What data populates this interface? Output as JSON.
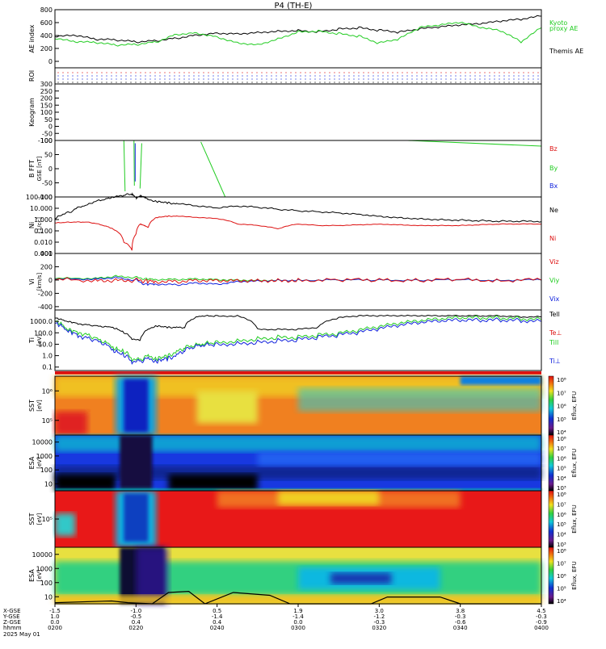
{
  "title": "P4  (TH-E)",
  "date_label": "2025 May 01",
  "colors": {
    "green": "#22cc22",
    "red": "#dd1111",
    "blue": "#1122dd",
    "black": "#000000"
  },
  "chart_data": [
    {
      "type": "line",
      "id": "ae",
      "ylabel": "AE index",
      "ylim": [
        -100,
        800
      ],
      "yticks": [
        "0",
        "200",
        "400",
        "600",
        "800"
      ],
      "legend": [
        {
          "name": "Kyoto",
          "color": "green"
        },
        {
          "name": "proxy AE",
          "color": "green"
        },
        {
          "name": "Themis AE",
          "color": "black"
        }
      ],
      "x": [
        0,
        5,
        10,
        15,
        20,
        25,
        30,
        35,
        40,
        45,
        50,
        55,
        60,
        65,
        70,
        75,
        80,
        85,
        90,
        95,
        100,
        105,
        110,
        115,
        120
      ],
      "series": [
        {
          "name": "Themis AE",
          "color": "black",
          "values": [
            380,
            400,
            340,
            330,
            300,
            320,
            360,
            410,
            440,
            430,
            450,
            470,
            480,
            460,
            500,
            520,
            480,
            450,
            500,
            530,
            560,
            580,
            620,
            650,
            700
          ]
        },
        {
          "name": "Kyoto",
          "color": "green",
          "values": [
            350,
            300,
            290,
            250,
            260,
            300,
            420,
            440,
            380,
            290,
            260,
            350,
            460,
            470,
            430,
            390,
            280,
            350,
            520,
            560,
            600,
            520,
            470,
            300,
            520
          ]
        }
      ]
    },
    {
      "type": "scatter",
      "id": "roi",
      "ylabel": "ROI",
      "yticks": []
    },
    {
      "type": "scatter",
      "id": "keogram",
      "ylabel": "Keogram",
      "ylim": [
        -100,
        300
      ],
      "yticks": [
        "-100",
        "-50",
        "0",
        "50",
        "100",
        "150",
        "200",
        "250",
        "300"
      ]
    },
    {
      "type": "line",
      "id": "bfft",
      "ylabel": "B FFT",
      "yunit": "GSE [nT]",
      "ylim": [
        -100,
        100
      ],
      "yticks": [
        "-100",
        "-50",
        "0",
        "50",
        "100"
      ],
      "legend": [
        {
          "name": "Bz",
          "color": "red"
        },
        {
          "name": "By",
          "color": "green"
        },
        {
          "name": "Bx",
          "color": "blue"
        }
      ],
      "segments": [
        {
          "color": "green",
          "points": [
            [
              17,
              100
            ],
            [
              17.3,
              -80
            ]
          ]
        },
        {
          "color": "green",
          "points": [
            [
              19.5,
              100
            ],
            [
              19.6,
              -60
            ]
          ]
        },
        {
          "color": "green",
          "points": [
            [
              21.4,
              90
            ],
            [
              21,
              -70
            ]
          ]
        },
        {
          "color": "blue",
          "points": [
            [
              19.8,
              90
            ],
            [
              19.8,
              -45
            ]
          ]
        },
        {
          "color": "green",
          "points": [
            [
              36,
              95
            ],
            [
              42,
              -100
            ]
          ]
        },
        {
          "color": "green",
          "points": [
            [
              87,
              100
            ],
            [
              120,
              80
            ]
          ]
        }
      ]
    },
    {
      "type": "line",
      "id": "density",
      "ylabel": "Ni",
      "yunit": "[1/cc]",
      "scale": "log",
      "ylim": [
        0.001,
        100
      ],
      "yticks": [
        "0.001",
        "0.010",
        "0.100",
        "1.000",
        "10.000",
        "100.000"
      ],
      "legend": [
        {
          "name": "Ne",
          "color": "black"
        },
        {
          "name": "Ni",
          "color": "red"
        }
      ],
      "x": [
        0,
        4,
        8,
        12,
        15,
        17,
        19,
        20,
        21,
        22,
        23,
        25,
        28,
        30,
        35,
        40,
        45,
        50,
        55,
        60,
        65,
        70,
        75,
        80,
        85,
        90,
        95,
        100,
        105,
        110,
        115,
        120
      ],
      "series": [
        {
          "name": "Ne",
          "color": "black",
          "values": [
            1,
            5,
            20,
            60,
            100,
            150,
            180,
            80,
            120,
            100,
            60,
            40,
            30,
            25,
            15,
            10,
            15,
            12,
            8,
            6,
            5,
            4,
            3,
            2,
            1.5,
            1.2,
            1,
            0.9,
            0.8,
            0.7,
            0.7,
            0.65
          ]
        },
        {
          "name": "Ni",
          "color": "red",
          "values": [
            0.5,
            0.6,
            0.6,
            0.3,
            0.1,
            0.01,
            0.002,
            0.05,
            0.4,
            0.3,
            0.2,
            1.5,
            2,
            2,
            1.5,
            1.2,
            0.4,
            0.3,
            0.15,
            0.4,
            0.3,
            0.3,
            0.35,
            0.4,
            0.35,
            0.3,
            0.3,
            0.3,
            0.35,
            0.4,
            0.4,
            0.4
          ]
        }
      ]
    },
    {
      "type": "line",
      "id": "velocity",
      "ylabel": "Vi",
      "yunit": "[km/s]",
      "ylim": [
        -450,
        400
      ],
      "yticks": [
        "-400",
        "-200",
        "0",
        "200",
        "400"
      ],
      "legend": [
        {
          "name": "Viz",
          "color": "red"
        },
        {
          "name": "Viy",
          "color": "green"
        },
        {
          "name": "Vix",
          "color": "blue"
        }
      ],
      "x": [
        0,
        10,
        15,
        20,
        22,
        25,
        30,
        35,
        40,
        45,
        50,
        55,
        60,
        70,
        80,
        90,
        100,
        110,
        120
      ],
      "series": [
        {
          "name": "Viy",
          "color": "green",
          "values": [
            20,
            30,
            60,
            40,
            20,
            10,
            10,
            20,
            10,
            5,
            0,
            0,
            0,
            0,
            0,
            0,
            0,
            0,
            0
          ]
        },
        {
          "name": "Vix",
          "color": "blue",
          "values": [
            10,
            20,
            40,
            0,
            -60,
            -60,
            -70,
            -40,
            -60,
            -20,
            -10,
            0,
            0,
            0,
            0,
            0,
            0,
            0,
            0
          ]
        },
        {
          "name": "Viz",
          "color": "red",
          "values": [
            0,
            0,
            0,
            0,
            -10,
            -20,
            -20,
            0,
            0,
            0,
            0,
            0,
            0,
            0,
            0,
            0,
            0,
            0,
            0
          ]
        }
      ]
    },
    {
      "type": "line",
      "id": "temperature",
      "ylabel": "Ti",
      "yunit": "[eV]",
      "scale": "log",
      "ylim": [
        0.05,
        10000
      ],
      "yticks": [
        "0.1",
        "1.0",
        "10.0",
        "100.0",
        "1000.0"
      ],
      "legend": [
        {
          "name": "Tell",
          "color": "black"
        },
        {
          "name": "Te⊥",
          "color": "red"
        },
        {
          "name": "Till",
          "color": "green"
        },
        {
          "name": "Ti⊥",
          "color": "blue"
        }
      ],
      "x": [
        0,
        3,
        6,
        10,
        14,
        17,
        19,
        21,
        23,
        25,
        28,
        30,
        32,
        36,
        40,
        45,
        50,
        55,
        60,
        65,
        70,
        75,
        80,
        85,
        90,
        95,
        100,
        105,
        110,
        115,
        120
      ],
      "series": [
        {
          "name": "Tell",
          "color": "black",
          "values": [
            2000,
            1000,
            600,
            400,
            300,
            100,
            30,
            20,
            200,
            400,
            300,
            300,
            300,
            3000,
            3000,
            3000,
            200,
            200,
            200,
            300,
            2000,
            3000,
            3000,
            3000,
            3000,
            3000,
            3000,
            3000,
            3000,
            2500,
            2500
          ]
        },
        {
          "name": "Till",
          "color": "green",
          "values": [
            1000,
            200,
            100,
            30,
            5,
            2,
            0.5,
            0.4,
            1,
            0.5,
            1,
            2,
            5,
            10,
            15,
            20,
            30,
            40,
            40,
            60,
            80,
            150,
            300,
            600,
            1000,
            1500,
            2000,
            2000,
            2000,
            1800,
            1500
          ]
        },
        {
          "name": "Ti⊥",
          "color": "blue",
          "values": [
            700,
            150,
            50,
            20,
            3,
            1,
            0.3,
            0.3,
            0.6,
            0.3,
            0.6,
            1,
            3,
            8,
            10,
            12,
            15,
            20,
            25,
            40,
            60,
            100,
            200,
            400,
            700,
            1000,
            1200,
            1200,
            1300,
            1200,
            1000
          ]
        }
      ]
    },
    {
      "type": "heatmap",
      "id": "sst1",
      "ylabel": "SST",
      "yunit": "[eV]",
      "yticks": [
        "10⁵",
        "10⁶"
      ],
      "colorbar_label": "Eflux, EFU",
      "colorbar_ticks": [
        "10⁴",
        "10⁵",
        "10⁶",
        "10⁷",
        "10⁸"
      ]
    },
    {
      "type": "heatmap",
      "id": "esa1",
      "ylabel": "ESA",
      "yunit": "[eV]",
      "yticks": [
        "10",
        "100",
        "1000",
        "10000"
      ],
      "colorbar_label": "Eflux, EFU",
      "colorbar_ticks": [
        "10³",
        "10⁴",
        "10⁵",
        "10⁶",
        "10⁷",
        "10⁸"
      ]
    },
    {
      "type": "heatmap",
      "id": "sst2",
      "ylabel": "SST",
      "yunit": "[eV]",
      "yticks": [
        "10⁵"
      ],
      "colorbar_label": "Eflux, EFU",
      "colorbar_ticks": [
        "10³",
        "10⁴",
        "10⁵",
        "10⁶",
        "10⁷",
        "10⁸"
      ]
    },
    {
      "type": "heatmap",
      "id": "esa2",
      "ylabel": "ESA",
      "yunit": "[eV]",
      "yticks": [
        "10",
        "100",
        "1000",
        "10000"
      ],
      "colorbar_label": "Eflux, EFU",
      "colorbar_ticks": [
        "10⁴",
        "10⁵",
        "10⁶",
        "10⁷",
        "10⁸"
      ]
    }
  ],
  "x_axis": {
    "row_labels": [
      "X-GSE",
      "Y-GSE",
      "Z-GSE",
      "hhmm",
      "2025 May 01"
    ],
    "ticks": [
      {
        "x": 0,
        "xgse": "-1.5",
        "ygse": "1.0",
        "zgse": "0.0",
        "time": "0200"
      },
      {
        "x": 20,
        "xgse": "-1.0",
        "ygse": "-0.5",
        "zgse": "0.4",
        "time": "0220"
      },
      {
        "x": 40,
        "xgse": "0.5",
        "ygse": "-1.4",
        "zgse": "0.4",
        "time": "0240"
      },
      {
        "x": 60,
        "xgse": "1.9",
        "ygse": "-1.4",
        "zgse": "0.0",
        "time": "0300"
      },
      {
        "x": 80,
        "xgse": "3.0",
        "ygse": "-1.2",
        "zgse": "-0.3",
        "time": "0320"
      },
      {
        "x": 100,
        "xgse": "3.8",
        "ygse": "-0.3",
        "zgse": "-0.6",
        "time": "0340"
      },
      {
        "x": 120,
        "xgse": "4.5",
        "ygse": "-0.3",
        "zgse": "-0.9",
        "time": "0400"
      }
    ]
  }
}
